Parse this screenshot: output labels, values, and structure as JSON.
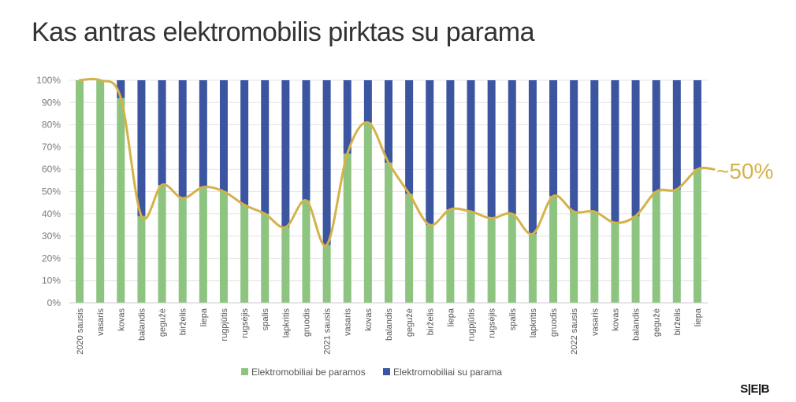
{
  "title": "Kas antras elektromobilis pirktas su parama",
  "logo": "S|E|B",
  "annotation": "~50%",
  "chart_data": {
    "type": "bar",
    "stacked": true,
    "categories": [
      "2020 sausis",
      "vasaris",
      "kovas",
      "balandis",
      "gegužė",
      "birželis",
      "liepa",
      "rugpjūtis",
      "rugsėjis",
      "spalis",
      "lapkritis",
      "gruodis",
      "2021 sausis",
      "vasaris",
      "kovas",
      "balandis",
      "gegužė",
      "birželis",
      "liepa",
      "rugpjūtis",
      "rugsėjis",
      "spalis",
      "lapkritis",
      "gruodis",
      "2022 sausis",
      "vasaris",
      "kovas",
      "balandis",
      "gegužė",
      "birželis",
      "liepa"
    ],
    "series": [
      {
        "name": "Elektromobiliai be paramos",
        "color": "#8dc47f",
        "values": [
          100,
          100,
          92,
          39,
          53,
          47,
          52,
          50,
          44,
          40,
          34,
          46,
          26,
          67,
          81,
          63,
          49,
          35,
          42,
          41,
          38,
          40,
          31,
          48,
          41,
          41,
          36,
          39,
          50,
          51,
          60
        ]
      },
      {
        "name": "Elektromobiliai su parama",
        "color": "#3b55a0",
        "values": [
          0,
          0,
          8,
          61,
          47,
          53,
          48,
          50,
          56,
          60,
          66,
          54,
          74,
          33,
          19,
          37,
          51,
          65,
          58,
          59,
          62,
          60,
          69,
          52,
          59,
          59,
          64,
          61,
          50,
          49,
          40
        ]
      }
    ],
    "trend_line_color": "#d4b24a",
    "y_ticks": [
      "0%",
      "10%",
      "20%",
      "30%",
      "40%",
      "50%",
      "60%",
      "70%",
      "80%",
      "90%",
      "100%"
    ],
    "ylim": [
      0,
      100
    ],
    "legend_position": "bottom"
  }
}
